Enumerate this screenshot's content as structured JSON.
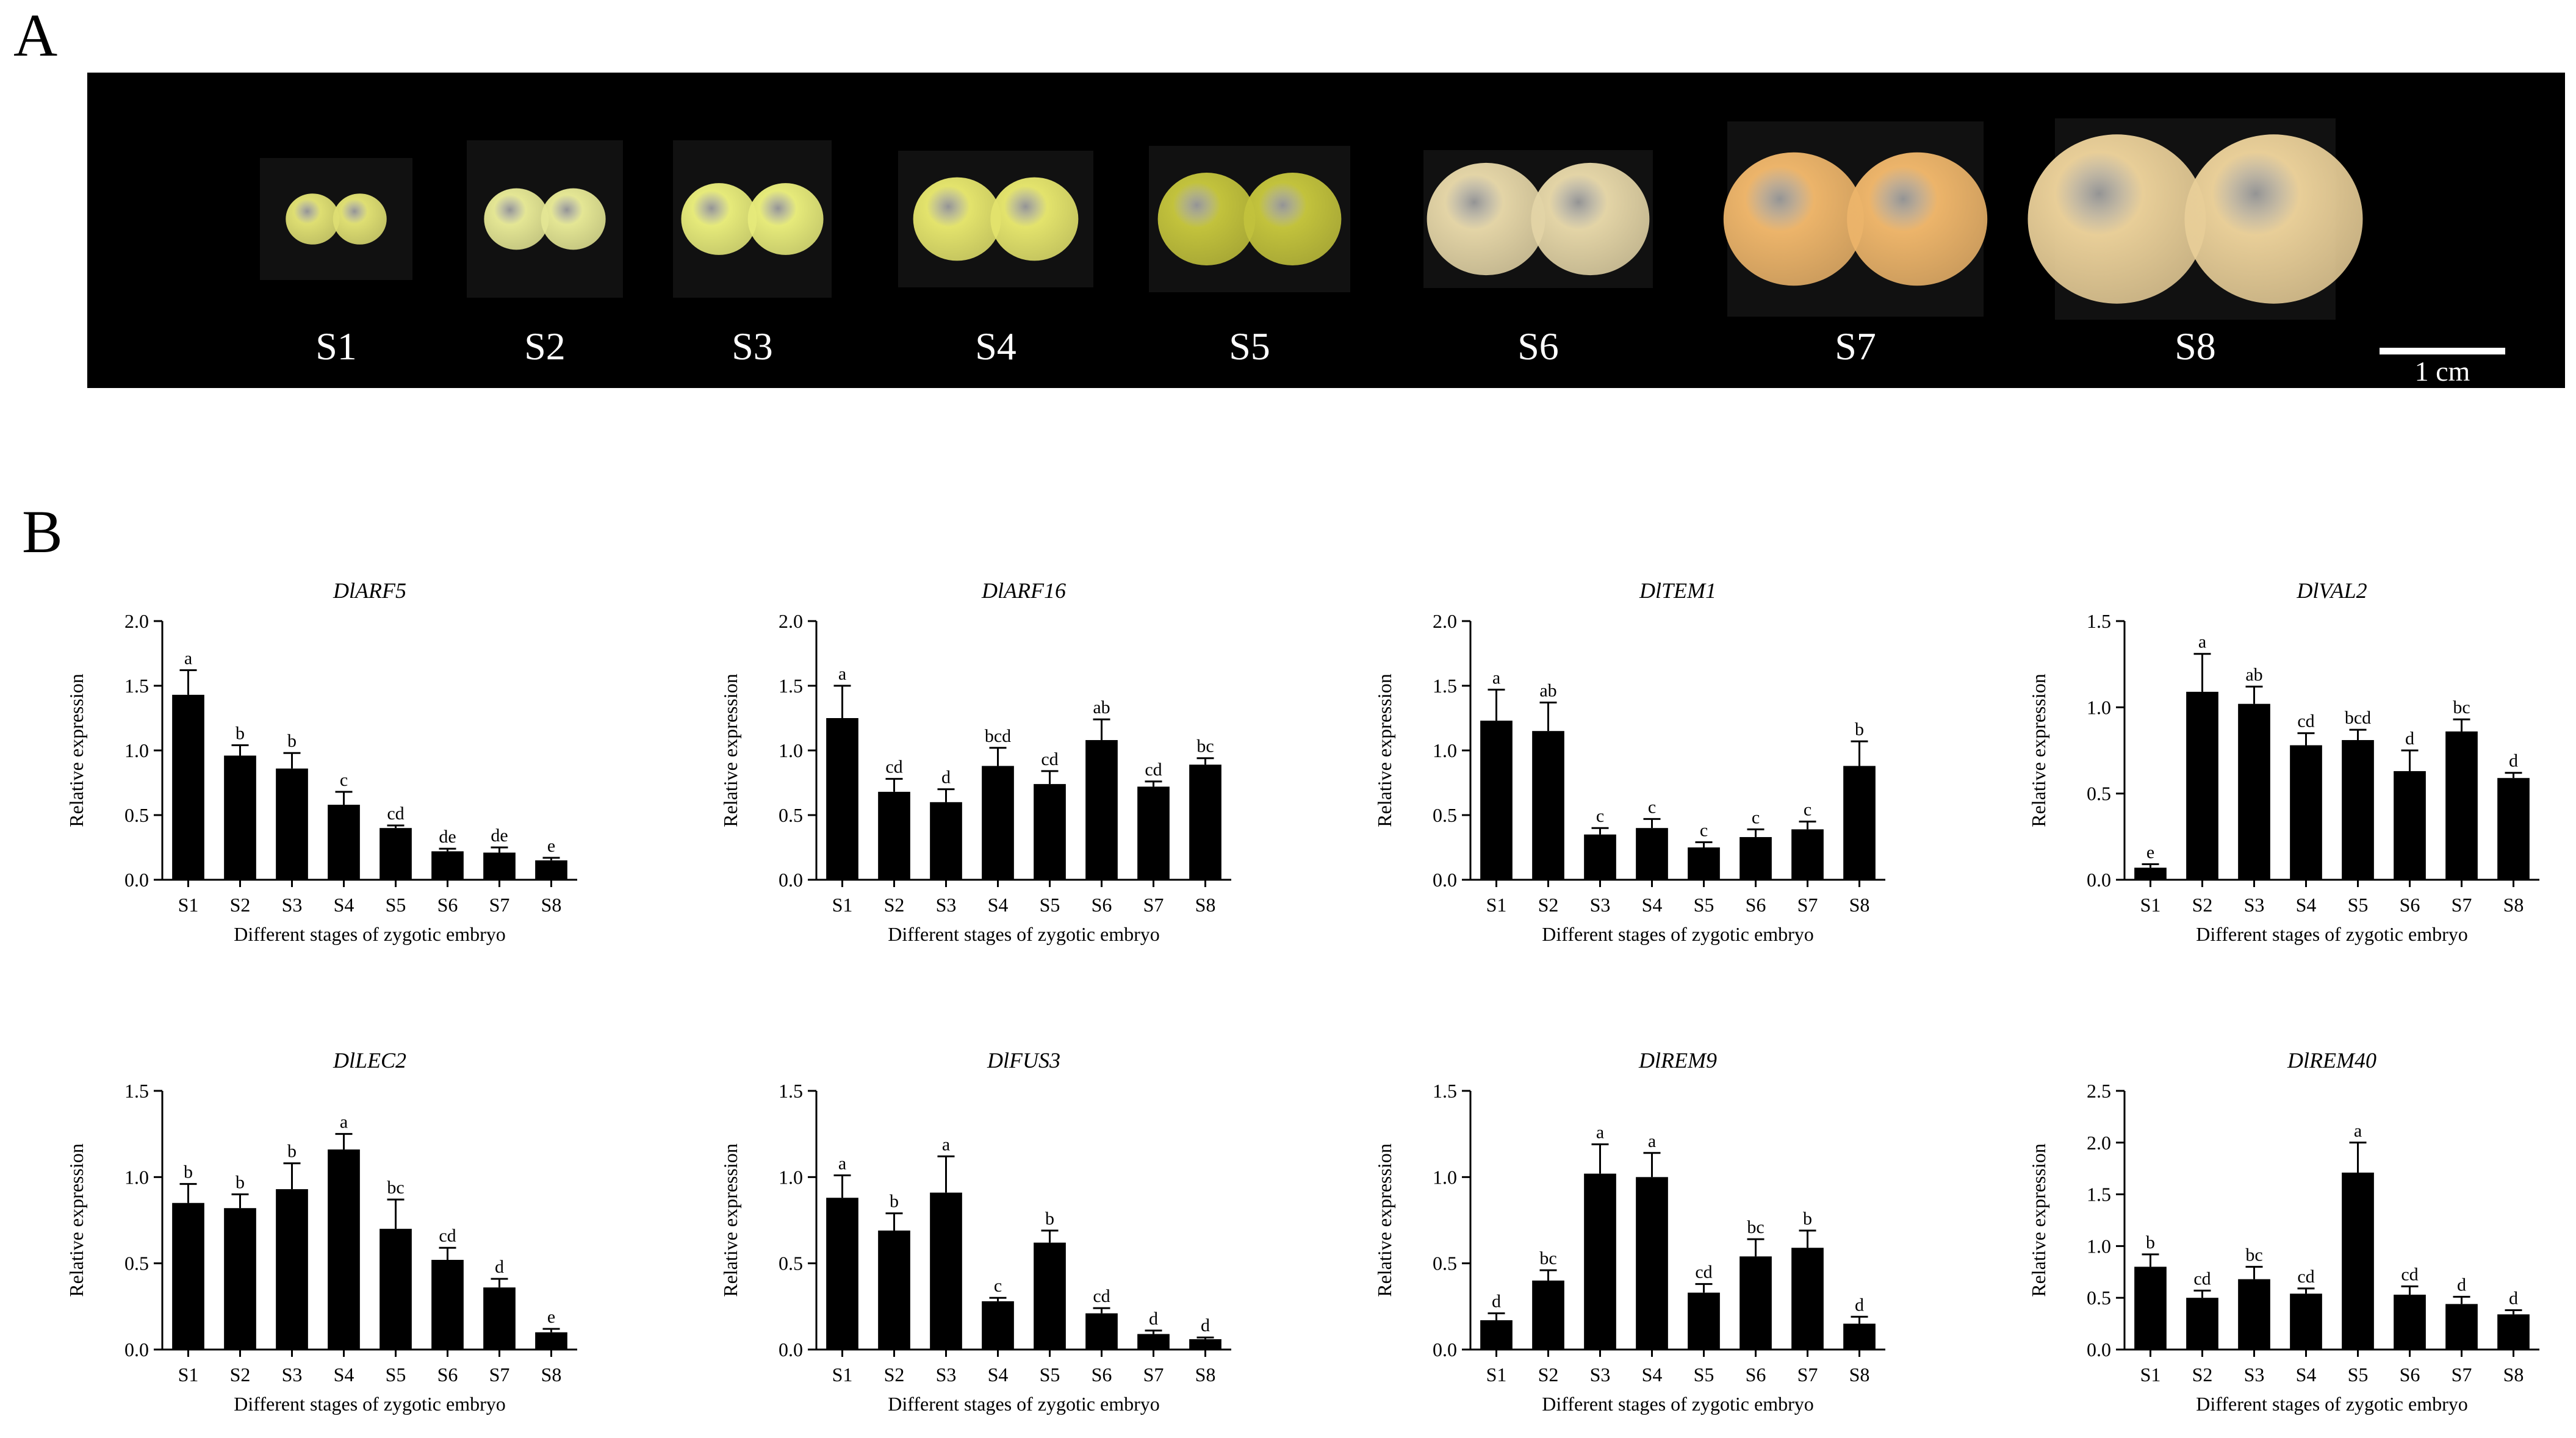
{
  "panels": {
    "a": "A",
    "b": "B"
  },
  "photo": {
    "stages": [
      {
        "label": "S1",
        "color": "#dede72"
      },
      {
        "label": "S2",
        "color": "#e4e694"
      },
      {
        "label": "S3",
        "color": "#e6ea7a"
      },
      {
        "label": "S4",
        "color": "#e3e36c"
      },
      {
        "label": "S5",
        "color": "#c2c23c"
      },
      {
        "label": "S6",
        "color": "#e3d4a6"
      },
      {
        "label": "S7",
        "color": "#ecb46a"
      },
      {
        "label": "S8",
        "color": "#e8ce98"
      }
    ],
    "scale_label": "1 cm"
  },
  "chart_data": [
    {
      "type": "bar",
      "title": "DlARF5",
      "categories": [
        "S1",
        "S2",
        "S3",
        "S4",
        "S5",
        "S6",
        "S7",
        "S8"
      ],
      "values": [
        1.43,
        0.96,
        0.86,
        0.58,
        0.4,
        0.22,
        0.21,
        0.15
      ],
      "errors": [
        0.19,
        0.08,
        0.12,
        0.1,
        0.02,
        0.02,
        0.04,
        0.02
      ],
      "letters": [
        "a",
        "b",
        "b",
        "c",
        "cd",
        "de",
        "de",
        "e"
      ],
      "xlabel": "Different stages of zygotic embryo",
      "ylabel": "Relative expression",
      "ylim": [
        0,
        2.0
      ],
      "yticks": [
        "0.0",
        "0.5",
        "1.0",
        "1.5",
        "2.0"
      ],
      "grid": false
    },
    {
      "type": "bar",
      "title": "DlARF16",
      "categories": [
        "S1",
        "S2",
        "S3",
        "S4",
        "S5",
        "S6",
        "S7",
        "S8"
      ],
      "values": [
        1.25,
        0.68,
        0.6,
        0.88,
        0.74,
        1.08,
        0.72,
        0.89
      ],
      "errors": [
        0.25,
        0.1,
        0.1,
        0.14,
        0.1,
        0.16,
        0.04,
        0.05
      ],
      "letters": [
        "a",
        "cd",
        "d",
        "bcd",
        "cd",
        "ab",
        "cd",
        "bc"
      ],
      "xlabel": "Different stages of zygotic embryo",
      "ylabel": "Relative expression",
      "ylim": [
        0,
        2.0
      ],
      "yticks": [
        "0.0",
        "0.5",
        "1.0",
        "1.5",
        "2.0"
      ],
      "grid": false
    },
    {
      "type": "bar",
      "title": "DlTEM1",
      "categories": [
        "S1",
        "S2",
        "S3",
        "S4",
        "S5",
        "S6",
        "S7",
        "S8"
      ],
      "values": [
        1.23,
        1.15,
        0.35,
        0.4,
        0.25,
        0.33,
        0.39,
        0.88
      ],
      "errors": [
        0.24,
        0.22,
        0.05,
        0.07,
        0.04,
        0.06,
        0.06,
        0.19
      ],
      "letters": [
        "a",
        "ab",
        "c",
        "c",
        "c",
        "c",
        "c",
        "b"
      ],
      "xlabel": "Different stages of zygotic embryo",
      "ylabel": "Relative expression",
      "ylim": [
        0,
        2.0
      ],
      "yticks": [
        "0.0",
        "0.5",
        "1.0",
        "1.5",
        "2.0"
      ],
      "grid": false
    },
    {
      "type": "bar",
      "title": "DlVAL2",
      "categories": [
        "S1",
        "S2",
        "S3",
        "S4",
        "S5",
        "S6",
        "S7",
        "S8"
      ],
      "values": [
        0.07,
        1.09,
        1.02,
        0.78,
        0.81,
        0.63,
        0.86,
        0.59
      ],
      "errors": [
        0.02,
        0.22,
        0.1,
        0.07,
        0.06,
        0.12,
        0.07,
        0.03
      ],
      "letters": [
        "e",
        "a",
        "ab",
        "cd",
        "bcd",
        "d",
        "bc",
        "d"
      ],
      "xlabel": "Different stages of zygotic embryo",
      "ylabel": "Relative expression",
      "ylim": [
        0,
        1.5
      ],
      "yticks": [
        "0.0",
        "0.5",
        "1.0",
        "1.5"
      ],
      "grid": false
    },
    {
      "type": "bar",
      "title": "DlLEC2",
      "categories": [
        "S1",
        "S2",
        "S3",
        "S4",
        "S5",
        "S6",
        "S7",
        "S8"
      ],
      "values": [
        0.85,
        0.82,
        0.93,
        1.16,
        0.7,
        0.52,
        0.36,
        0.1
      ],
      "errors": [
        0.11,
        0.08,
        0.15,
        0.09,
        0.17,
        0.07,
        0.05,
        0.02
      ],
      "letters": [
        "b",
        "b",
        "b",
        "a",
        "bc",
        "cd",
        "d",
        "e"
      ],
      "xlabel": "Different stages of zygotic embryo",
      "ylabel": "Relative expression",
      "ylim": [
        0,
        1.5
      ],
      "yticks": [
        "0.0",
        "0.5",
        "1.0",
        "1.5"
      ],
      "grid": false
    },
    {
      "type": "bar",
      "title": "DlFUS3",
      "categories": [
        "S1",
        "S2",
        "S3",
        "S4",
        "S5",
        "S6",
        "S7",
        "S8"
      ],
      "values": [
        0.88,
        0.69,
        0.91,
        0.28,
        0.62,
        0.21,
        0.09,
        0.06
      ],
      "errors": [
        0.13,
        0.1,
        0.21,
        0.02,
        0.07,
        0.03,
        0.02,
        0.01
      ],
      "letters": [
        "a",
        "b",
        "a",
        "c",
        "b",
        "cd",
        "d",
        "d"
      ],
      "xlabel": "Different stages of zygotic embryo",
      "ylabel": "Relative expression",
      "ylim": [
        0,
        1.5
      ],
      "yticks": [
        "0.0",
        "0.5",
        "1.0",
        "1.5"
      ],
      "grid": false
    },
    {
      "type": "bar",
      "title": "DlREM9",
      "categories": [
        "S1",
        "S2",
        "S3",
        "S4",
        "S5",
        "S6",
        "S7",
        "S8"
      ],
      "values": [
        0.17,
        0.4,
        1.02,
        1.0,
        0.33,
        0.54,
        0.59,
        0.15
      ],
      "errors": [
        0.04,
        0.06,
        0.17,
        0.14,
        0.05,
        0.1,
        0.1,
        0.04
      ],
      "letters": [
        "d",
        "bc",
        "a",
        "a",
        "cd",
        "bc",
        "b",
        "d"
      ],
      "xlabel": "Different stages of zygotic embryo",
      "ylabel": "Relative expression",
      "ylim": [
        0,
        1.5
      ],
      "yticks": [
        "0.0",
        "0.5",
        "1.0",
        "1.5"
      ],
      "grid": false
    },
    {
      "type": "bar",
      "title": "DlREM40",
      "categories": [
        "S1",
        "S2",
        "S3",
        "S4",
        "S5",
        "S6",
        "S7",
        "S8"
      ],
      "values": [
        0.8,
        0.5,
        0.68,
        0.54,
        1.71,
        0.53,
        0.44,
        0.34
      ],
      "errors": [
        0.12,
        0.07,
        0.12,
        0.05,
        0.29,
        0.08,
        0.07,
        0.04
      ],
      "letters": [
        "b",
        "cd",
        "bc",
        "cd",
        "a",
        "cd",
        "d",
        "d"
      ],
      "xlabel": "Different stages of zygotic embryo",
      "ylabel": "Relative expression",
      "ylim": [
        0,
        2.5
      ],
      "yticks": [
        "0.0",
        "0.5",
        "1.0",
        "1.5",
        "2.0",
        "2.5"
      ],
      "grid": false
    }
  ]
}
